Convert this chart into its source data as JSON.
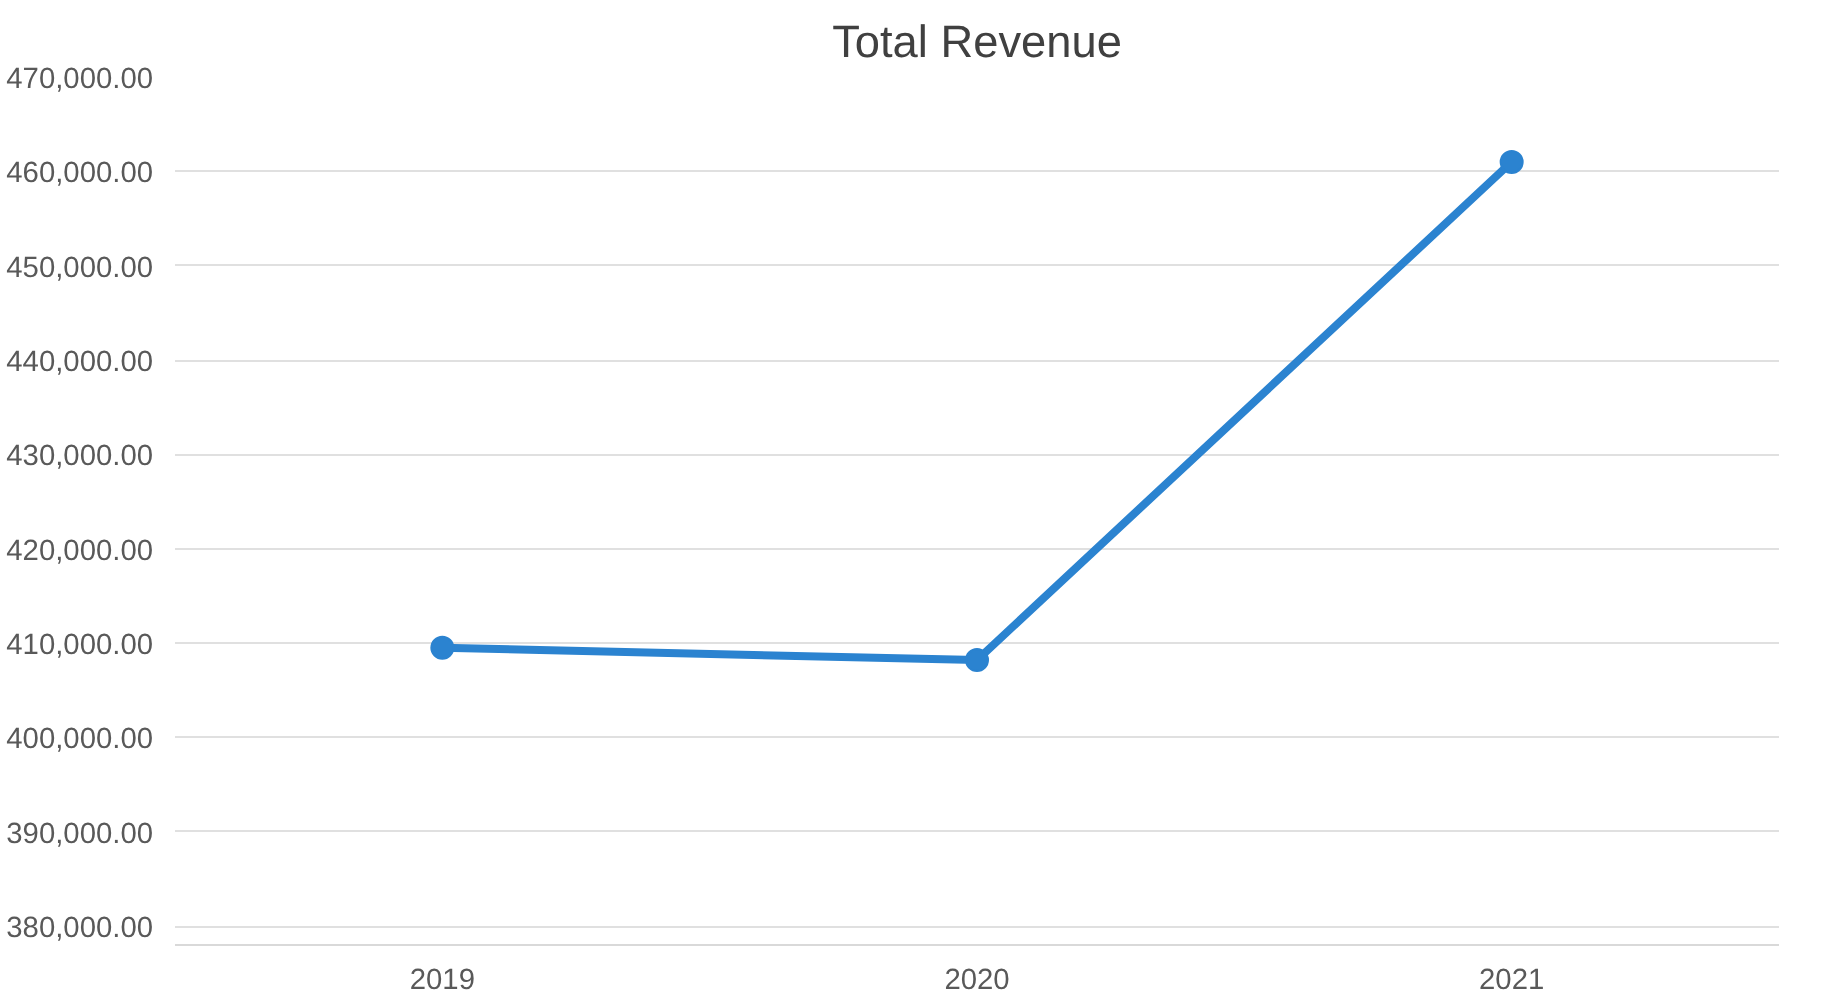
{
  "chart_data": {
    "type": "line",
    "title": "Total Revenue",
    "categories": [
      "2019",
      "2020",
      "2021"
    ],
    "series": [
      {
        "color": "#2b83d0",
        "values": [
          409500,
          408200,
          461000
        ]
      }
    ],
    "ylim": [
      378000,
      470000
    ],
    "yticks": [
      {
        "value": 380000,
        "label": "380,000.00"
      },
      {
        "value": 390000,
        "label": "390,000.00"
      },
      {
        "value": 400000,
        "label": "400,000.00"
      },
      {
        "value": 410000,
        "label": "410,000.00"
      },
      {
        "value": 420000,
        "label": "420,000.00"
      },
      {
        "value": 430000,
        "label": "430,000.00"
      },
      {
        "value": 440000,
        "label": "440,000.00"
      },
      {
        "value": 450000,
        "label": "450,000.00"
      },
      {
        "value": 460000,
        "label": "460,000.00"
      },
      {
        "value": 470000,
        "label": "470,000.00"
      }
    ],
    "grid": "y",
    "marker": "circle",
    "line_style": "solid"
  }
}
